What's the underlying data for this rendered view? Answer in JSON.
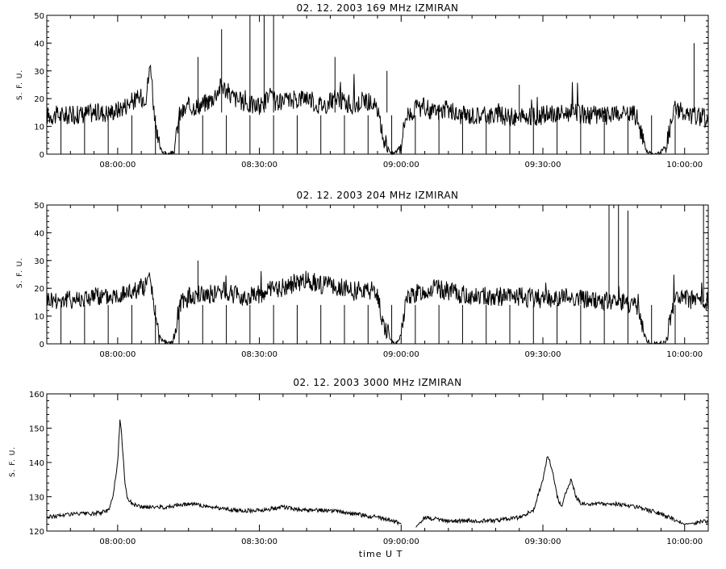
{
  "charts": [
    {
      "title": "02.  12.  2003    169 MHz    IZMIRAN",
      "ylabel": "S. F. U.",
      "ylim": [
        0,
        50
      ],
      "yticks": [
        0,
        10,
        20,
        30,
        40,
        50
      ],
      "xticks": [
        "08:00:00",
        "08:30:00",
        "09:00:00",
        "09:30:00",
        "10:00:00"
      ]
    },
    {
      "title": "02.  12.  2003    204 MHz    IZMIRAN",
      "ylabel": "S. F. U.",
      "ylim": [
        0,
        50
      ],
      "yticks": [
        0,
        10,
        20,
        30,
        40,
        50
      ],
      "xticks": [
        "08:00:00",
        "08:30:00",
        "09:00:00",
        "09:30:00",
        "10:00:00"
      ]
    },
    {
      "title": "02.  12.  2003    3000 MHz    IZMIRAN",
      "ylabel": "S. F. U.",
      "xlabel": "time  U T",
      "ylim": [
        120,
        160
      ],
      "yticks": [
        120,
        130,
        140,
        150,
        160
      ],
      "xticks": [
        "08:00:00",
        "08:30:00",
        "09:00:00",
        "09:30:00",
        "10:00:00"
      ]
    }
  ],
  "chart_data": [
    {
      "type": "line",
      "title": "02.  12.  2003    169 MHz    IZMIRAN",
      "ylabel": "S. F. U.",
      "xlabel": "",
      "xlim_minutes_from_0800": [
        -15,
        125
      ],
      "ylim": [
        0,
        50
      ],
      "series": [
        {
          "x_minutes_from_0800": [
            -15,
            -10,
            -5,
            -2,
            0,
            3,
            6,
            7,
            8,
            9,
            10,
            11,
            12,
            13,
            15,
            18,
            20,
            22,
            24,
            26,
            28,
            30,
            32,
            34,
            36,
            38,
            40,
            42,
            44,
            46,
            48,
            50,
            52,
            54,
            55,
            56,
            58,
            59,
            60,
            61,
            63,
            65,
            67,
            70,
            72,
            75,
            80,
            85,
            90,
            95,
            100,
            105,
            108,
            109,
            110,
            111,
            112,
            113,
            114,
            115,
            116,
            118,
            120,
            122,
            125
          ],
          "y": [
            14,
            14,
            15,
            15,
            16,
            19,
            21,
            33,
            8,
            2,
            0,
            0,
            1,
            14,
            17,
            18,
            20,
            25,
            21,
            19,
            18,
            17,
            21,
            18,
            19,
            20,
            21,
            18,
            18,
            20,
            19,
            17,
            20,
            18,
            15,
            7,
            0,
            1,
            4,
            14,
            16,
            17,
            15,
            16,
            14,
            14,
            14,
            13,
            14,
            15,
            14,
            14,
            14,
            15,
            13,
            6,
            1,
            0,
            0,
            1,
            3,
            17,
            14,
            14,
            13
          ]
        }
      ],
      "spikes": [
        {
          "x_minutes_from_0800": 17,
          "y": 35
        },
        {
          "x_minutes_from_0800": 22,
          "y": 45
        },
        {
          "x_minutes_from_0800": 28,
          "y": 50
        },
        {
          "x_minutes_from_0800": 31,
          "y": 50
        },
        {
          "x_minutes_from_0800": 33,
          "y": 50
        },
        {
          "x_minutes_from_0800": 46,
          "y": 35
        },
        {
          "x_minutes_from_0800": 57,
          "y": 30
        },
        {
          "x_minutes_from_0800": 85,
          "y": 25
        },
        {
          "x_minutes_from_0800": 122,
          "y": 40
        }
      ]
    },
    {
      "type": "line",
      "title": "02.  12.  2003    204 MHz    IZMIRAN",
      "ylabel": "S. F. U.",
      "xlabel": "",
      "xlim_minutes_from_0800": [
        -15,
        125
      ],
      "ylim": [
        0,
        50
      ],
      "series": [
        {
          "x_minutes_from_0800": [
            -15,
            -10,
            -5,
            -2,
            0,
            3,
            6,
            7,
            8,
            9,
            10,
            11,
            12,
            13,
            15,
            18,
            20,
            22,
            24,
            26,
            28,
            30,
            32,
            34,
            36,
            38,
            40,
            42,
            44,
            46,
            48,
            50,
            52,
            54,
            55,
            56,
            58,
            59,
            60,
            61,
            63,
            65,
            67,
            70,
            72,
            75,
            80,
            85,
            90,
            95,
            100,
            105,
            108,
            109,
            110,
            111,
            112,
            113,
            114,
            115,
            116,
            118,
            120,
            122,
            125
          ],
          "y": [
            16,
            16,
            17,
            17,
            18,
            19,
            21,
            24,
            8,
            2,
            1,
            0,
            1,
            14,
            17,
            18,
            18,
            19,
            18,
            17,
            17,
            18,
            19,
            20,
            21,
            22,
            23,
            22,
            21,
            20,
            20,
            19,
            20,
            19,
            18,
            8,
            1,
            0,
            3,
            16,
            18,
            19,
            20,
            19,
            18,
            17,
            17,
            17,
            16,
            17,
            16,
            15,
            15,
            14,
            13,
            6,
            1,
            0,
            0,
            0,
            1,
            17,
            16,
            16,
            15
          ]
        }
      ],
      "spikes": [
        {
          "x_minutes_from_0800": 17,
          "y": 30
        },
        {
          "x_minutes_from_0800": 104,
          "y": 50
        },
        {
          "x_minutes_from_0800": 106,
          "y": 50
        },
        {
          "x_minutes_from_0800": 108,
          "y": 48
        },
        {
          "x_minutes_from_0800": 124,
          "y": 50
        }
      ]
    },
    {
      "type": "line",
      "title": "02.  12.  2003    3000 MHz    IZMIRAN",
      "ylabel": "S. F. U.",
      "xlabel": "time  U T",
      "xlim_minutes_from_0800": [
        -15,
        125
      ],
      "ylim": [
        120,
        160
      ],
      "series": [
        {
          "x_minutes_from_0800": [
            -15,
            -10,
            -5,
            -2,
            -1,
            0,
            0.5,
            1,
            1.5,
            2,
            3,
            5,
            10,
            15,
            20,
            25,
            30,
            35,
            40,
            45,
            50,
            55,
            58,
            63,
            65,
            70,
            75,
            80,
            85,
            88,
            90,
            91,
            92,
            93,
            94,
            95,
            96,
            97,
            98,
            100,
            105,
            110,
            115,
            120,
            125
          ],
          "y": [
            124,
            125,
            125,
            126,
            130,
            140,
            153,
            145,
            135,
            130,
            128,
            127,
            127,
            128,
            127,
            126,
            126,
            127,
            126,
            126,
            125,
            124,
            123,
            121,
            124,
            123,
            123,
            123,
            124,
            126,
            135,
            142,
            138,
            130,
            127,
            132,
            135,
            130,
            128,
            128,
            128,
            127,
            125,
            122,
            123
          ]
        }
      ],
      "gap_minutes_from_0800": [
        60,
        63
      ]
    }
  ]
}
